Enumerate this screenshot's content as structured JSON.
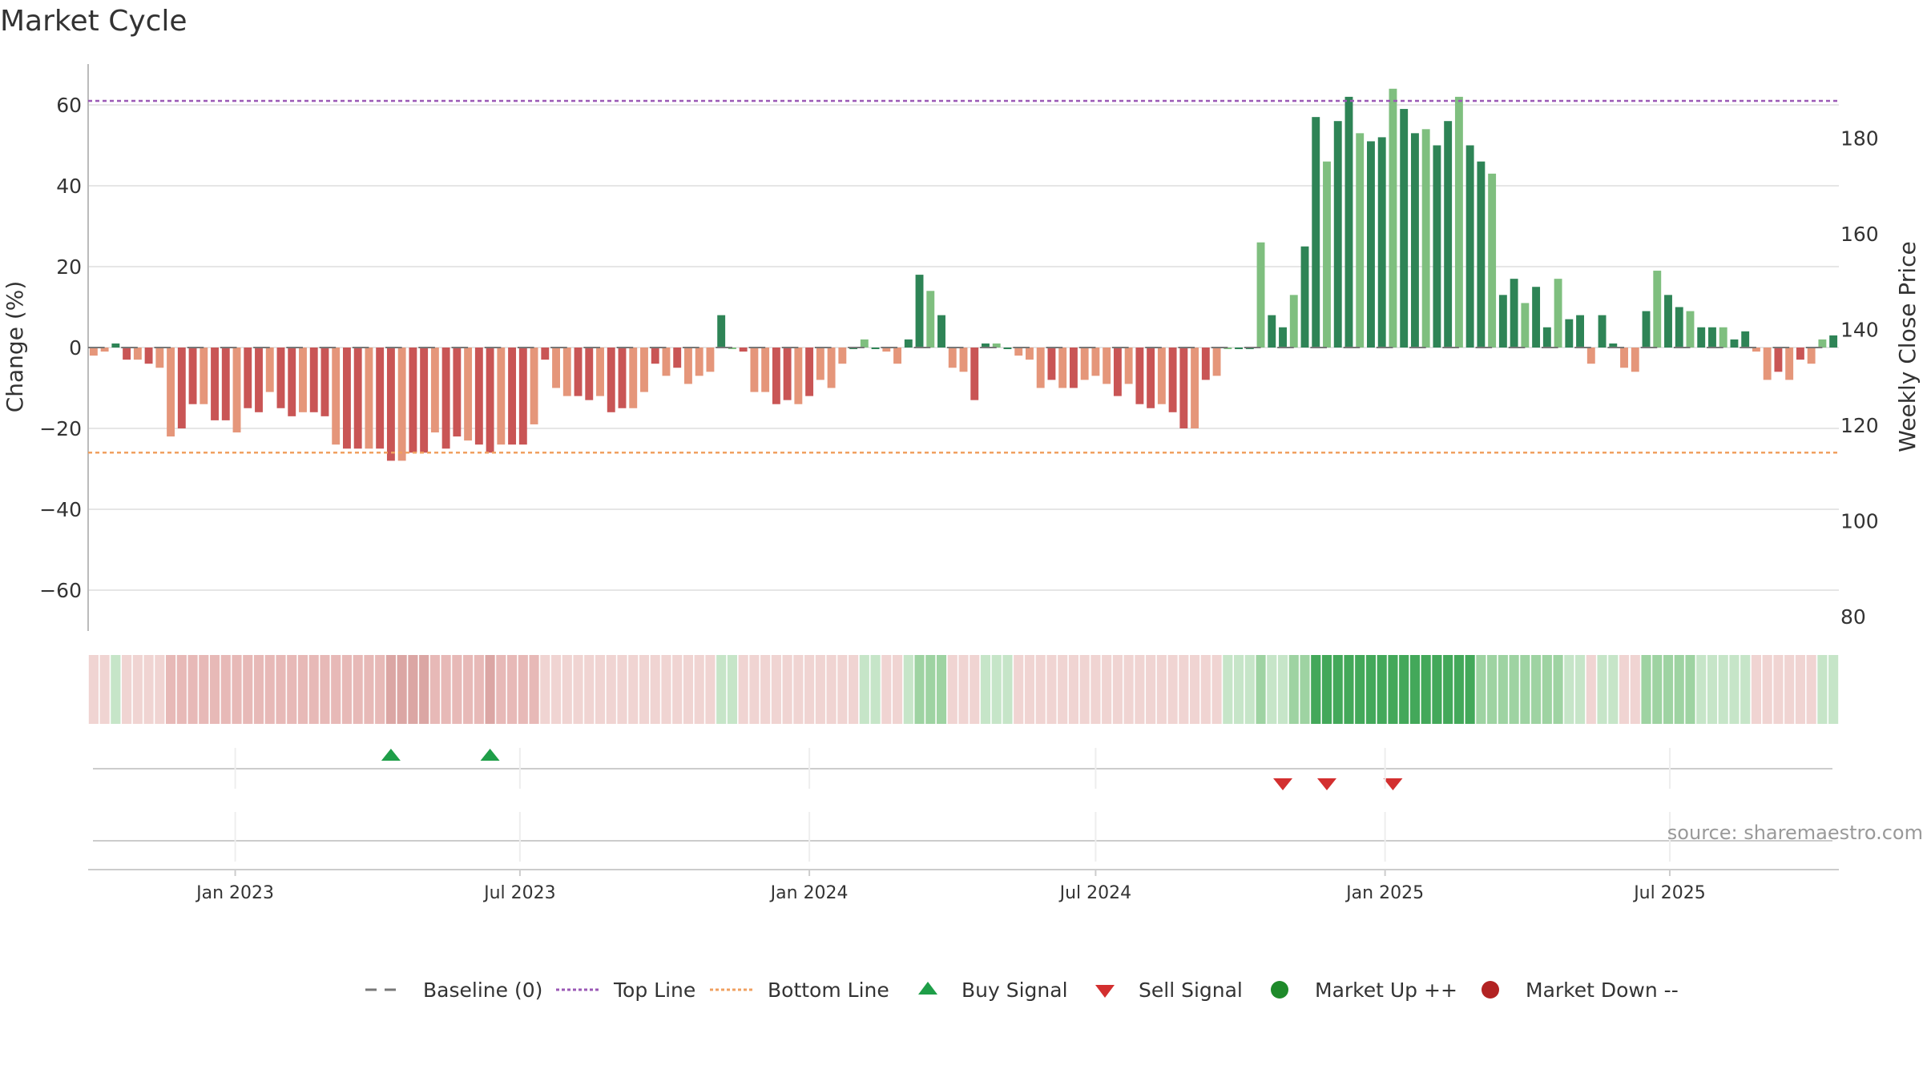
{
  "chart_data": {
    "type": "bar",
    "title": "Market Cycle",
    "ylabel_left": "Change (%)",
    "ylabel_right": "Weekly Close Price",
    "y_left_ticks": [
      60,
      40,
      20,
      0,
      -20,
      -40,
      -60
    ],
    "y_left_tick_labels": [
      "60",
      "40",
      "20",
      "0",
      "−20",
      "−40",
      "−60"
    ],
    "ylim_left": [
      -70,
      70
    ],
    "y_right_ticks": [
      180,
      160,
      140,
      120,
      100,
      80
    ],
    "ylim_right": [
      78,
      193
    ],
    "top_line": 61,
    "bottom_line": -26,
    "x_start": "2022-10-03",
    "x_tick_labels": [
      {
        "label": "Jan 2023",
        "date": "2023-01-01"
      },
      {
        "label": "Jul 2023",
        "date": "2023-07-01"
      },
      {
        "label": "Jan 2024",
        "date": "2024-01-01"
      },
      {
        "label": "Jul 2024",
        "date": "2024-07-01"
      },
      {
        "label": "Jan 2025",
        "date": "2025-01-01"
      },
      {
        "label": "Jul 2025",
        "date": "2025-07-01"
      }
    ],
    "change_pct": [
      -2,
      -1,
      1,
      -3,
      -3,
      -4,
      -5,
      -22,
      -20,
      -14,
      -14,
      -18,
      -18,
      -21,
      -15,
      -16,
      -11,
      -15,
      -17,
      -16,
      -16,
      -17,
      -24,
      -25,
      -25,
      -25,
      -25,
      -28,
      -28,
      -26,
      -26,
      -21,
      -25,
      -22,
      -23,
      -24,
      -26,
      -24,
      -24,
      -24,
      -19,
      -3,
      -10,
      -12,
      -12,
      -13,
      -12,
      -16,
      -15,
      -15,
      -11,
      -4,
      -7,
      -5,
      -9,
      -7,
      -6,
      8,
      0,
      -1,
      -11,
      -11,
      -14,
      -13,
      -14,
      -12,
      -8,
      -10,
      -4,
      0,
      2,
      0,
      -1,
      -4,
      2,
      18,
      14,
      8,
      -5,
      -6,
      -13,
      1,
      1,
      0,
      -2,
      -3,
      -10,
      -8,
      -10,
      -10,
      -8,
      -7,
      -9,
      -12,
      -9,
      -14,
      -15,
      -14,
      -16,
      -20,
      -20,
      -8,
      -7,
      0,
      0,
      0,
      26,
      8,
      5,
      13,
      25,
      57,
      46,
      56,
      62,
      53,
      51,
      52,
      64,
      59,
      53,
      54,
      50,
      56,
      62,
      50,
      46,
      43,
      13,
      17,
      11,
      15,
      5,
      17,
      7,
      8,
      -4,
      8,
      1,
      -5,
      -6,
      9,
      19,
      13,
      10,
      9,
      5,
      5,
      5,
      2,
      4,
      -1,
      -8,
      -6,
      -8,
      -3,
      -4,
      2,
      3
    ],
    "market_state": [
      -1,
      -1,
      1,
      -1,
      -1,
      -1,
      -1,
      -2,
      -2,
      -2,
      -2,
      -2,
      -2,
      -2,
      -2,
      -2,
      -2,
      -2,
      -2,
      -2,
      -2,
      -2,
      -2,
      -2,
      -2,
      -2,
      -2,
      -3,
      -3,
      -3,
      -3,
      -2,
      -2,
      -2,
      -2,
      -2,
      -3,
      -2,
      -2,
      -2,
      -2,
      -1,
      -1,
      -1,
      -1,
      -1,
      -1,
      -1,
      -1,
      -1,
      -1,
      -1,
      -1,
      -1,
      -1,
      -1,
      -1,
      1,
      1,
      -1,
      -1,
      -1,
      -1,
      -1,
      -1,
      -1,
      -1,
      -1,
      -1,
      -1,
      1,
      1,
      -1,
      -1,
      1,
      2,
      2,
      2,
      -1,
      -1,
      -1,
      1,
      1,
      1,
      -1,
      -1,
      -1,
      -1,
      -1,
      -1,
      -1,
      -1,
      -1,
      -1,
      -1,
      -1,
      -1,
      -1,
      -1,
      -1,
      -1,
      -1,
      -1,
      1,
      1,
      1,
      2,
      1,
      1,
      2,
      2,
      3,
      3,
      3,
      3,
      3,
      3,
      3,
      3,
      3,
      3,
      3,
      3,
      3,
      3,
      3,
      2,
      2,
      2,
      2,
      2,
      2,
      2,
      2,
      1,
      1,
      -1,
      1,
      1,
      -1,
      -1,
      2,
      2,
      2,
      2,
      2,
      1,
      1,
      1,
      1,
      1,
      -1,
      -1,
      -1,
      -1,
      -1,
      -1,
      1,
      1
    ],
    "buy_signals": [
      "2023-04-10",
      "2023-06-12"
    ],
    "sell_signals": [
      "2024-10-28",
      "2024-11-25",
      "2025-01-06"
    ],
    "legend": [
      {
        "label": "Baseline (0)",
        "marker": "dash",
        "color": "#777777"
      },
      {
        "label": "Top Line",
        "marker": "dotted",
        "color": "#9b59b6"
      },
      {
        "label": "Bottom Line",
        "marker": "dotted",
        "color": "#f0a060"
      },
      {
        "label": "Buy Signal",
        "marker": "triangle-up",
        "color": "#1e9e48"
      },
      {
        "label": "Sell Signal",
        "marker": "triangle-down",
        "color": "#d32f2f"
      },
      {
        "label": "Market Up ++",
        "marker": "circle",
        "color": "#1e8a2a"
      },
      {
        "label": "Market Down --",
        "marker": "circle",
        "color": "#b22222"
      }
    ],
    "legend_position": "bottom-center",
    "grid": true
  },
  "colors": {
    "bar_dark_green": "#2e8456",
    "bar_light_green": "#7fbf7f",
    "bar_dark_red": "#c95555",
    "bar_light_red": "#e5967a",
    "top_line": "#9b59b6",
    "bottom_line": "#f0a060",
    "grid": "#e6e6e6",
    "axis": "#bbbbbb",
    "text": "#333333"
  },
  "source": "source: sharemaestro.com"
}
